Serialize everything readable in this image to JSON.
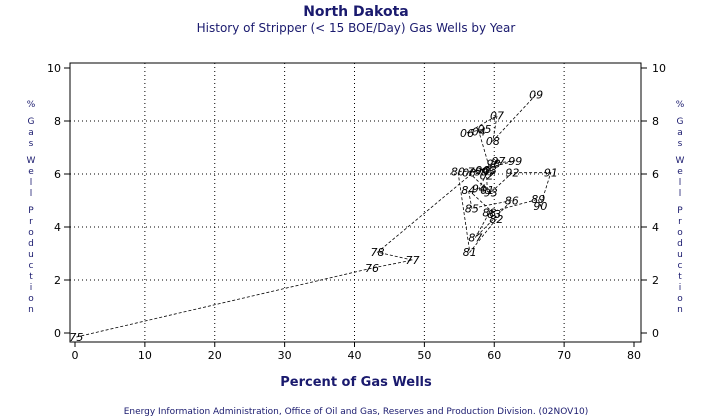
{
  "chart_data": {
    "type": "line",
    "title": "North Dakota",
    "subtitle": "History of Stripper (< 15 BOE/Day) Gas Wells by Year",
    "xlabel": "Percent of Gas Wells",
    "ylabel": "% Gas Well Production",
    "footnote": "Energy Information Administration, Office of Oil and Gas, Reserves and Production Division. (02NOV10)",
    "xlim": [
      0,
      80
    ],
    "ylim": [
      0,
      10
    ],
    "xticks": [
      "0",
      "10",
      "20",
      "30",
      "40",
      "50",
      "60",
      "70",
      "80"
    ],
    "yticks": [
      "0",
      "2",
      "4",
      "6",
      "8",
      "10"
    ],
    "grid": true,
    "series": [
      {
        "labels": [
          "75",
          "76",
          "77",
          "78",
          "79",
          "80",
          "81",
          "82",
          "83",
          "84",
          "85",
          "86",
          "87",
          "88",
          "89",
          "90",
          "91",
          "92",
          "93",
          "94",
          "95",
          "96",
          "97",
          "98",
          "99",
          "00",
          "01",
          "02",
          "03",
          "04",
          "05",
          "06",
          "07",
          "08",
          "09"
        ],
        "x": [
          0.2,
          42.5,
          48.3,
          43.3,
          57.2,
          54.8,
          56.5,
          60.3,
          60.0,
          56.3,
          56.8,
          62.5,
          57.3,
          59.3,
          66.3,
          66.6,
          68.1,
          62.6,
          59.5,
          57.8,
          59.1,
          58.3,
          60.6,
          59.9,
          63.0,
          56.4,
          59.0,
          58.9,
          59.4,
          57.8,
          58.6,
          56.1,
          60.4,
          59.8,
          66.0
        ],
        "y": [
          -0.15,
          2.45,
          2.75,
          3.05,
          6.1,
          6.1,
          3.05,
          4.3,
          4.5,
          5.4,
          4.7,
          5.0,
          3.6,
          4.55,
          5.05,
          4.8,
          6.05,
          6.05,
          5.3,
          5.45,
          6.1,
          6.15,
          6.5,
          6.4,
          6.5,
          6.05,
          5.4,
          5.95,
          6.15,
          7.6,
          7.7,
          7.55,
          8.2,
          7.25,
          9.0
        ]
      }
    ]
  }
}
